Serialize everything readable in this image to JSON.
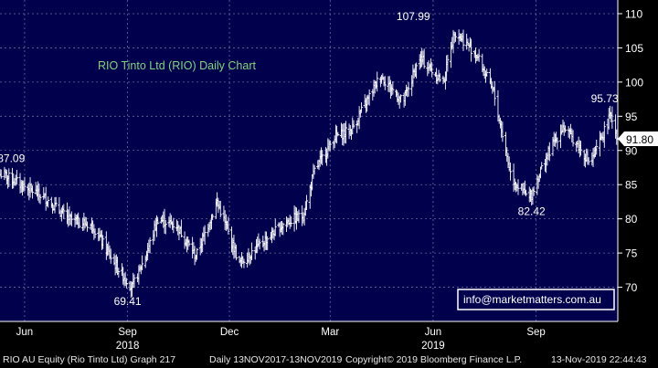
{
  "chart_data": {
    "type": "bar",
    "title": "RIO Tinto Ltd (RIO) Daily Chart",
    "xlabel": "",
    "ylabel": "",
    "ylim": [
      65,
      112
    ],
    "y_ticks": [
      70,
      75,
      80,
      85,
      90,
      95,
      100,
      105,
      110
    ],
    "x_range": [
      "2018-05-10",
      "2019-11-13"
    ],
    "x_ticks": [
      {
        "date": "2018-06-01",
        "label": "Jun"
      },
      {
        "date": "2018-09-01",
        "label": "Sep"
      },
      {
        "date": "2018-12-01",
        "label": "Dec"
      },
      {
        "date": "2019-03-01",
        "label": "Mar"
      },
      {
        "date": "2019-06-01",
        "label": "Jun"
      },
      {
        "date": "2019-09-01",
        "label": "Sep"
      }
    ],
    "year_labels": [
      {
        "date": "2018-09-01",
        "label": "2018"
      },
      {
        "date": "2019-06-01",
        "label": "2019"
      }
    ],
    "grid": true,
    "key_points": [
      {
        "date": "2018-05-13",
        "value": 86.5
      },
      {
        "date": "2018-06-20",
        "value": 83.0
      },
      {
        "date": "2018-07-10",
        "value": 80.0
      },
      {
        "date": "2018-08-01",
        "value": 79.0
      },
      {
        "date": "2018-08-20",
        "value": 73.5
      },
      {
        "date": "2018-09-05",
        "value": 70.0
      },
      {
        "date": "2018-09-17",
        "value": 74.5
      },
      {
        "date": "2018-09-28",
        "value": 80.0
      },
      {
        "date": "2018-10-15",
        "value": 79.0
      },
      {
        "date": "2018-11-01",
        "value": 74.5
      },
      {
        "date": "2018-11-20",
        "value": 82.5
      },
      {
        "date": "2018-12-10",
        "value": 73.5
      },
      {
        "date": "2018-12-27",
        "value": 76.0
      },
      {
        "date": "2019-01-20",
        "value": 79.5
      },
      {
        "date": "2019-02-05",
        "value": 80.5
      },
      {
        "date": "2019-02-15",
        "value": 87.0
      },
      {
        "date": "2019-03-05",
        "value": 92.0
      },
      {
        "date": "2019-03-20",
        "value": 93.0
      },
      {
        "date": "2019-04-15",
        "value": 101.0
      },
      {
        "date": "2019-05-05",
        "value": 97.0
      },
      {
        "date": "2019-05-20",
        "value": 103.5
      },
      {
        "date": "2019-06-10",
        "value": 100.0
      },
      {
        "date": "2019-06-20",
        "value": 107.5
      },
      {
        "date": "2019-07-10",
        "value": 104.0
      },
      {
        "date": "2019-07-25",
        "value": 98.5
      },
      {
        "date": "2019-08-10",
        "value": 86.0
      },
      {
        "date": "2019-08-26",
        "value": 82.9
      },
      {
        "date": "2019-09-10",
        "value": 89.0
      },
      {
        "date": "2019-09-25",
        "value": 93.5
      },
      {
        "date": "2019-10-05",
        "value": 91.5
      },
      {
        "date": "2019-10-20",
        "value": 88.0
      },
      {
        "date": "2019-11-07",
        "value": 95.3
      },
      {
        "date": "2019-11-13",
        "value": 91.8
      }
    ],
    "annotations": [
      {
        "text": "87.09",
        "date": "2018-05-20",
        "value": 87.09
      },
      {
        "text": "69.41",
        "date": "2018-09-01",
        "value": 69.41
      },
      {
        "text": "107.99",
        "date": "2019-05-29",
        "value": 107.99
      },
      {
        "text": "82.42",
        "date": "2019-08-28",
        "value": 82.42
      },
      {
        "text": "95.73",
        "date": "2019-11-07",
        "value": 95.73
      }
    ],
    "last_price": {
      "text": "91.80",
      "value": 91.8
    },
    "watermark": "info@marketmatters.com.au",
    "colors": {
      "background": "#00004d",
      "bars": "#ffffff",
      "grid": "#6a6a9a",
      "title": "#7dd67d",
      "text": "#ffffff"
    }
  },
  "footer": {
    "ticker": "RIO AU Equity (Rio Tinto Ltd) Graph 217",
    "range": "Daily 13NOV2017-13NOV2019",
    "copyright": "Copyright© 2019 Bloomberg Finance L.P.",
    "timestamp": "13-Nov-2019 22:44:43"
  }
}
